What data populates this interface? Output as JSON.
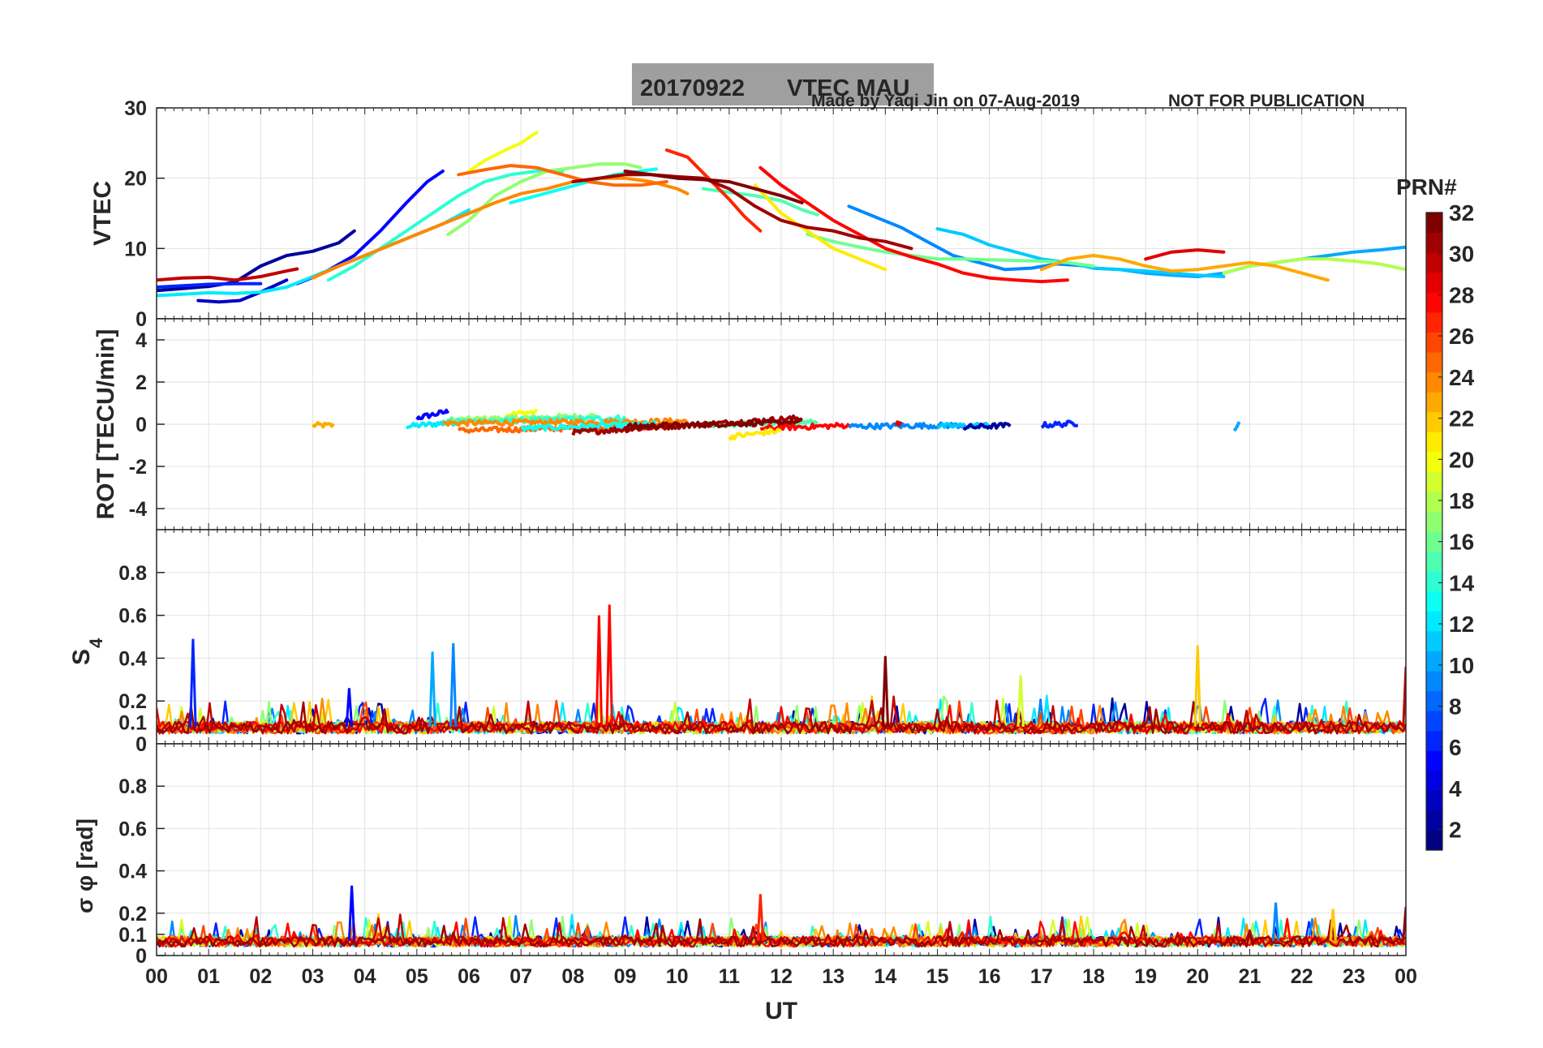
{
  "title": {
    "date": "20170922",
    "label": "VTEC  MAU",
    "box_color": "#9f9f9f"
  },
  "credit": "Made by Yaqi Jin on 07-Aug-2019",
  "notice": "NOT FOR PUBLICATION",
  "text_accent": "#0000ff",
  "colorbar": {
    "title": "PRN#",
    "range": [
      1,
      32
    ],
    "ticks": [
      "2",
      "4",
      "6",
      "8",
      "10",
      "12",
      "14",
      "16",
      "18",
      "20",
      "22",
      "24",
      "26",
      "28",
      "30",
      "32"
    ],
    "colormap": "jet"
  },
  "chart_data": [
    {
      "type": "line",
      "id": "vtec",
      "ylabel": "VTEC",
      "ylim": [
        0,
        30
      ],
      "yticks": [
        "0",
        "10",
        "20",
        "30"
      ],
      "grid": true,
      "xlim": [
        0,
        24
      ],
      "series": [
        {
          "prn": 2,
          "x": [
            0.0,
            0.5,
            1.0,
            1.5,
            2.0,
            2.5,
            3.0,
            3.5,
            3.8
          ],
          "y": [
            4.0,
            4.3,
            4.6,
            5.2,
            7.5,
            9.0,
            9.6,
            10.8,
            12.5
          ]
        },
        {
          "prn": 3,
          "x": [
            0.8,
            1.2,
            1.6,
            2.0,
            2.5
          ],
          "y": [
            2.6,
            2.4,
            2.6,
            3.8,
            5.5
          ]
        },
        {
          "prn": 5,
          "x": [
            2.7,
            3.2,
            3.8,
            4.3,
            4.8,
            5.2,
            5.5
          ],
          "y": [
            5.0,
            6.5,
            9.0,
            12.5,
            16.5,
            19.5,
            21.0
          ]
        },
        {
          "prn": 6,
          "x": [
            0.0,
            0.5,
            1.0,
            1.5,
            2.0
          ],
          "y": [
            4.5,
            4.7,
            4.9,
            5.0,
            5.0
          ]
        },
        {
          "prn": 9,
          "x": [
            13.3,
            13.8,
            14.3,
            14.8,
            15.3,
            15.8,
            16.3,
            16.8,
            17.3,
            17.9
          ],
          "y": [
            16.0,
            14.5,
            13.0,
            11.0,
            9.0,
            8.0,
            7.0,
            7.2,
            7.8,
            7.5
          ]
        },
        {
          "prn": 10,
          "x": [
            18.0,
            18.5,
            19.0,
            19.5,
            20.0,
            20.5,
            21.0,
            21.5,
            22.0,
            22.5,
            23.0,
            23.5,
            24.0
          ],
          "y": [
            7.2,
            7.0,
            6.5,
            6.2,
            6.0,
            6.5,
            7.5,
            8.0,
            8.5,
            9.0,
            9.5,
            9.8,
            10.2
          ]
        },
        {
          "prn": 11,
          "x": [
            15.0,
            15.5,
            16.0,
            16.5,
            17.0,
            17.5,
            18.0,
            18.5,
            19.0,
            19.5,
            20.0,
            20.5
          ],
          "y": [
            12.8,
            12.0,
            10.5,
            9.5,
            8.5,
            8.0,
            7.2,
            7.0,
            6.8,
            6.5,
            6.2,
            6.0
          ]
        },
        {
          "prn": 12,
          "x": [
            0.0,
            0.5,
            1.0,
            1.5,
            2.0,
            2.5,
            3.0,
            3.5,
            4.0,
            4.5,
            5.0,
            5.5,
            6.0
          ],
          "y": [
            3.3,
            3.5,
            3.7,
            3.6,
            3.8,
            4.5,
            6.0,
            7.5,
            9.0,
            10.5,
            12.0,
            13.5,
            15.5
          ]
        },
        {
          "prn": 13,
          "x": [
            6.8,
            7.3,
            7.8,
            8.3,
            8.8,
            9.3,
            9.6
          ],
          "y": [
            16.5,
            17.5,
            18.5,
            19.5,
            20.5,
            21.0,
            21.3
          ]
        },
        {
          "prn": 14,
          "x": [
            3.3,
            3.8,
            4.3,
            4.8,
            5.3,
            5.8,
            6.3,
            6.8,
            7.3,
            7.8
          ],
          "y": [
            5.5,
            7.5,
            10.0,
            12.5,
            15.0,
            17.5,
            19.5,
            20.5,
            21.0,
            21.0
          ]
        },
        {
          "prn": 15,
          "x": [
            10.5,
            11.0,
            11.5,
            12.0,
            12.4,
            12.7
          ],
          "y": [
            18.5,
            18.0,
            17.5,
            16.8,
            15.5,
            14.8
          ]
        },
        {
          "prn": 16,
          "x": [
            12.5,
            13.0,
            13.5,
            14.0,
            14.5,
            15.0,
            15.5,
            16.0,
            16.5,
            17.0,
            17.5,
            18.0
          ],
          "y": [
            12.0,
            11.0,
            10.2,
            9.5,
            9.0,
            8.5,
            8.5,
            8.4,
            8.3,
            8.2,
            8.0,
            7.5
          ]
        },
        {
          "prn": 17,
          "x": [
            5.6,
            6.0,
            6.5,
            7.0,
            7.5,
            8.0,
            8.5,
            9.0,
            9.3
          ],
          "y": [
            12.0,
            14.0,
            17.5,
            19.5,
            21.0,
            21.5,
            22.0,
            22.0,
            21.5
          ]
        },
        {
          "prn": 18,
          "x": [
            20.5,
            21.0,
            21.5,
            22.0,
            22.5,
            23.0,
            23.5,
            24.0
          ],
          "y": [
            6.5,
            7.5,
            8.0,
            8.5,
            8.5,
            8.2,
            7.8,
            7.0
          ]
        },
        {
          "prn": 20,
          "x": [
            6.0,
            6.3,
            6.7,
            7.0,
            7.3
          ],
          "y": [
            21.0,
            22.5,
            24.0,
            25.0,
            26.5
          ]
        },
        {
          "prn": 21,
          "x": [
            11.5,
            12.0,
            12.5,
            13.0,
            13.5,
            14.0
          ],
          "y": [
            19.0,
            15.0,
            12.5,
            10.0,
            8.5,
            7.0
          ]
        },
        {
          "prn": 23,
          "x": [
            17.0,
            17.5,
            18.0,
            18.5,
            19.0,
            19.5,
            20.0,
            20.5,
            21.0,
            21.5,
            22.0,
            22.5
          ],
          "y": [
            7.0,
            8.5,
            9.0,
            8.5,
            7.5,
            6.8,
            7.0,
            7.5,
            8.0,
            7.5,
            6.5,
            5.5
          ]
        },
        {
          "prn": 24,
          "x": [
            3.0,
            3.5,
            4.0,
            4.5,
            5.0,
            5.5,
            6.0,
            6.5,
            7.0,
            7.5,
            8.0,
            8.5,
            9.0,
            9.5,
            10.0,
            10.2
          ],
          "y": [
            5.8,
            7.5,
            9.0,
            10.5,
            12.0,
            13.5,
            15.0,
            16.5,
            17.8,
            18.5,
            19.5,
            20.0,
            20.0,
            19.5,
            18.5,
            17.8
          ]
        },
        {
          "prn": 25,
          "x": [
            5.8,
            6.3,
            6.8,
            7.3,
            7.8,
            8.3,
            8.8,
            9.3,
            9.8
          ],
          "y": [
            20.5,
            21.2,
            21.8,
            21.5,
            20.5,
            19.5,
            19.0,
            19.0,
            19.5
          ]
        },
        {
          "prn": 27,
          "x": [
            9.8,
            10.2,
            10.6,
            11.0,
            11.3,
            11.6
          ],
          "y": [
            24.0,
            23.0,
            20.0,
            17.0,
            14.5,
            12.5
          ]
        },
        {
          "prn": 28,
          "x": [
            11.6,
            12.0,
            12.5,
            13.0,
            13.5,
            14.0,
            14.5,
            15.0,
            15.5,
            16.0,
            16.5,
            17.0,
            17.5
          ],
          "y": [
            21.5,
            19.0,
            16.5,
            14.0,
            12.0,
            10.0,
            8.8,
            7.8,
            6.5,
            5.8,
            5.5,
            5.3,
            5.5
          ]
        },
        {
          "prn": 29,
          "x": [
            19.0,
            19.5,
            20.0,
            20.5
          ],
          "y": [
            8.5,
            9.5,
            9.8,
            9.5
          ]
        },
        {
          "prn": 30,
          "x": [
            0.0,
            0.5,
            1.0,
            1.5,
            2.0,
            2.5,
            2.7
          ],
          "y": [
            5.5,
            5.8,
            5.9,
            5.5,
            6.0,
            6.8,
            7.1
          ]
        },
        {
          "prn": 31,
          "x": [
            8.0,
            8.5,
            9.0,
            9.5,
            10.0,
            10.5,
            11.0,
            11.5,
            12.0,
            12.5,
            13.0,
            13.5,
            14.0,
            14.5
          ],
          "y": [
            19.5,
            20.0,
            20.5,
            20.5,
            20.2,
            20.0,
            18.5,
            16.0,
            14.0,
            13.0,
            12.5,
            11.5,
            11.0,
            10.0
          ]
        },
        {
          "prn": 32,
          "x": [
            9.0,
            9.5,
            10.0,
            10.5,
            11.0,
            11.5,
            12.0,
            12.4
          ],
          "y": [
            21.0,
            20.5,
            20.0,
            19.8,
            19.5,
            18.5,
            17.5,
            16.5
          ]
        }
      ]
    },
    {
      "type": "scatter",
      "id": "rot",
      "ylabel": "ROT [TECU/min]",
      "ylim": [
        -5,
        5
      ],
      "yticks": [
        "-4",
        "-2",
        "0",
        "2",
        "4"
      ],
      "grid": true,
      "xlim": [
        0,
        24
      ],
      "segments": [
        {
          "prn": 23,
          "x": [
            3.0,
            3.4
          ],
          "y": [
            -0.05,
            -0.05
          ]
        },
        {
          "prn": 5,
          "x": [
            5.0,
            5.6
          ],
          "y": [
            0.3,
            0.6
          ]
        },
        {
          "prn": 12,
          "x": [
            4.8,
            5.8
          ],
          "y": [
            -0.1,
            0.1
          ]
        },
        {
          "prn": 20,
          "x": [
            6.7,
            7.3
          ],
          "y": [
            0.45,
            0.6
          ]
        },
        {
          "prn": 17,
          "x": [
            5.6,
            8.5
          ],
          "y": [
            0.2,
            0.4
          ]
        },
        {
          "prn": 14,
          "x": [
            5.5,
            9.0
          ],
          "y": [
            0.1,
            0.3
          ]
        },
        {
          "prn": 24,
          "x": [
            5.5,
            10.2
          ],
          "y": [
            0.05,
            0.15
          ]
        },
        {
          "prn": 25,
          "x": [
            5.8,
            9.8
          ],
          "y": [
            -0.3,
            -0.1
          ]
        },
        {
          "prn": 13,
          "x": [
            7.0,
            9.6
          ],
          "y": [
            -0.2,
            0.0
          ]
        },
        {
          "prn": 15,
          "x": [
            10.5,
            12.7
          ],
          "y": [
            -0.05,
            0.1
          ]
        },
        {
          "prn": 31,
          "x": [
            8.0,
            12.4
          ],
          "y": [
            -0.4,
            0.3
          ]
        },
        {
          "prn": 32,
          "x": [
            9.0,
            12.4
          ],
          "y": [
            -0.1,
            0.1
          ]
        },
        {
          "prn": 28,
          "x": [
            11.6,
            13.3
          ],
          "y": [
            -0.2,
            -0.05
          ]
        },
        {
          "prn": 21,
          "x": [
            11.0,
            12.0
          ],
          "y": [
            -0.6,
            -0.3
          ]
        },
        {
          "prn": 9,
          "x": [
            13.3,
            15.5
          ],
          "y": [
            -0.1,
            -0.05
          ]
        },
        {
          "prn": 11,
          "x": [
            15.0,
            16.0
          ],
          "y": [
            -0.1,
            -0.05
          ]
        },
        {
          "prn": 2,
          "x": [
            15.5,
            16.4
          ],
          "y": [
            -0.15,
            -0.05
          ]
        },
        {
          "prn": 6,
          "x": [
            17.0,
            17.7
          ],
          "y": [
            -0.05,
            0.05
          ]
        },
        {
          "prn": 10,
          "x": [
            20.7,
            20.8
          ],
          "y": [
            -0.2,
            0.05
          ]
        },
        {
          "prn": 29,
          "x": [
            14.2,
            14.3
          ],
          "y": [
            0.05,
            0.1
          ]
        }
      ]
    },
    {
      "type": "line",
      "id": "s4",
      "ylabel": "S4",
      "ylim": [
        0,
        1
      ],
      "yticks": [
        "0",
        "0.1",
        "0.2",
        "0.4",
        "0.6",
        "0.8"
      ],
      "grid": true,
      "xlim": [
        0,
        24
      ],
      "baseline": 0.08,
      "spikes": [
        {
          "prn": 6,
          "x": 0.7,
          "y": 0.49
        },
        {
          "prn": 5,
          "x": 3.7,
          "y": 0.26
        },
        {
          "prn": 10,
          "x": 5.3,
          "y": 0.43
        },
        {
          "prn": 9,
          "x": 5.7,
          "y": 0.47
        },
        {
          "prn": 28,
          "x": 8.5,
          "y": 0.6
        },
        {
          "prn": 28,
          "x": 8.7,
          "y": 0.65
        },
        {
          "prn": 32,
          "x": 14.0,
          "y": 0.41
        },
        {
          "prn": 19,
          "x": 16.6,
          "y": 0.32
        },
        {
          "prn": 22,
          "x": 20.0,
          "y": 0.46
        },
        {
          "prn": 30,
          "x": 24.0,
          "y": 0.36
        }
      ]
    },
    {
      "type": "line",
      "id": "sigma_phi",
      "ylabel": "σ φ [rad]",
      "ylim": [
        0,
        1
      ],
      "yticks": [
        "0",
        "0.1",
        "0.2",
        "0.4",
        "0.6",
        "0.8"
      ],
      "grid": true,
      "xlim": [
        0,
        24
      ],
      "xlabel": "UT",
      "xticks": [
        "00",
        "01",
        "02",
        "03",
        "04",
        "05",
        "06",
        "07",
        "08",
        "09",
        "10",
        "11",
        "12",
        "13",
        "14",
        "15",
        "16",
        "17",
        "18",
        "19",
        "20",
        "21",
        "22",
        "23",
        "00"
      ],
      "baseline": 0.07,
      "spikes": [
        {
          "prn": 5,
          "x": 3.75,
          "y": 0.33
        },
        {
          "prn": 27,
          "x": 11.6,
          "y": 0.29
        },
        {
          "prn": 9,
          "x": 21.5,
          "y": 0.25
        },
        {
          "prn": 22,
          "x": 22.6,
          "y": 0.22
        },
        {
          "prn": 31,
          "x": 24.0,
          "y": 0.23
        }
      ]
    }
  ]
}
